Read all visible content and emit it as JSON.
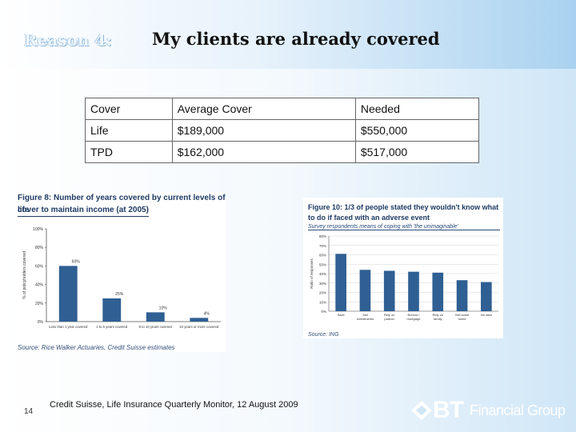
{
  "slide": {
    "reason_label": "Reason 4:",
    "title": "My clients are already covered",
    "page_number": "14",
    "footnote": "Credit Suisse, Life Insurance Quarterly Monitor, 12 August 2009"
  },
  "cover_table": {
    "headers": [
      "Cover",
      "Average Cover",
      "Needed"
    ],
    "rows": [
      [
        "Life",
        "$189,000",
        "$550,000"
      ],
      [
        "TPD",
        "$162,000",
        "$517,000"
      ]
    ]
  },
  "figure8": {
    "title_line1": "Figure 8: Number of years covered by current levels of life",
    "title_line2": "cover to maintain income (at 2005)",
    "source": "Source: Rice Walker Actuaries, Credit Suisse estimates"
  },
  "figure10": {
    "title_line1": "Figure 10: 1/3 of people stated they wouldn't know what",
    "title_line2": "to do if faced with an adverse event",
    "subtitle": "Survey respondents means of coping with 'the unimaginable'",
    "source": "Source: ING"
  },
  "logo": {
    "mark": "BT",
    "text": "Financial Group",
    "color": "#ffffff"
  },
  "colors": {
    "bar": "#2f5f93",
    "title_blue": "#1f3b63"
  },
  "chart_data": [
    {
      "type": "bar",
      "categories": [
        "Less than 1 year covered",
        "1 to 5 years covered",
        "6 to 10 years covered",
        "10 years or more covered"
      ],
      "values": [
        60,
        25,
        10,
        4
      ],
      "value_labels": [
        "60%",
        "25%",
        "10%",
        "4%"
      ],
      "yticks": [
        "0%",
        "20%",
        "40%",
        "60%",
        "80%",
        "100%"
      ],
      "ylabel": "% of policyholders covered",
      "ylim": [
        0,
        100
      ],
      "grid": false
    },
    {
      "type": "bar",
      "categories": [
        "Save",
        "Sell investments / assets",
        "Rely on partner",
        "Borrow / mortgage",
        "Rely on family",
        "Sell some home",
        "No idea"
      ],
      "values": [
        61,
        44,
        43,
        42,
        41,
        33,
        31
      ],
      "yticks": [
        "0%",
        "10%",
        "20%",
        "30%",
        "40%",
        "50%",
        "60%",
        "70%",
        "80%"
      ],
      "ylabel": "Ratio of responses",
      "ylim": [
        0,
        80
      ],
      "grid": true
    }
  ]
}
